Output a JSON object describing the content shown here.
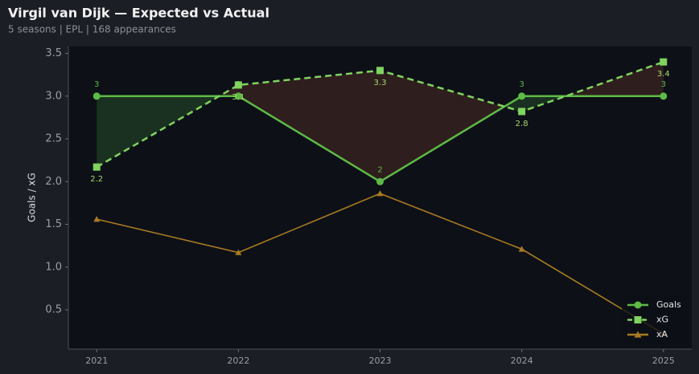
{
  "chart_data": {
    "type": "line",
    "title": "Virgil van Dijk — Expected vs Actual",
    "subtitle": "5 seasons | EPL | 168 appearances",
    "y_label": "Goals / xG",
    "x": [
      2021,
      2022,
      2023,
      2024,
      2025
    ],
    "series": [
      {
        "name": "Goals",
        "color": "#5dbb46",
        "marker": "circle",
        "dash": false,
        "values": [
          3,
          3,
          2,
          3,
          3
        ]
      },
      {
        "name": "xG",
        "color": "#7fd35f",
        "marker": "square",
        "dash": true,
        "values": [
          2.17,
          3.13,
          3.3,
          2.82,
          3.4
        ],
        "value_labels": [
          "2.2",
          "3.1",
          "3.3",
          "2.8",
          "3.4"
        ]
      },
      {
        "name": "xA",
        "color": "#a87a22",
        "marker": "triangle",
        "dash": false,
        "values": [
          1.56,
          1.17,
          1.86,
          1.21,
          0.22
        ]
      }
    ],
    "fill_colors": {
      "above": "#1c3522",
      "below": "#33201f"
    },
    "xlim": [
      2020.8,
      2025.2
    ],
    "xticks": [
      2021,
      2022,
      2023,
      2024,
      2025
    ],
    "ylim": [
      0.04,
      3.58
    ],
    "yticks": [
      0.5,
      {
        "value": 1,
        "label": "1.0"
      },
      1.5,
      {
        "value": 2,
        "label": "2.0"
      },
      2.5,
      {
        "value": 3,
        "label": "3.0"
      },
      3.5
    ],
    "legend": "lower right"
  }
}
